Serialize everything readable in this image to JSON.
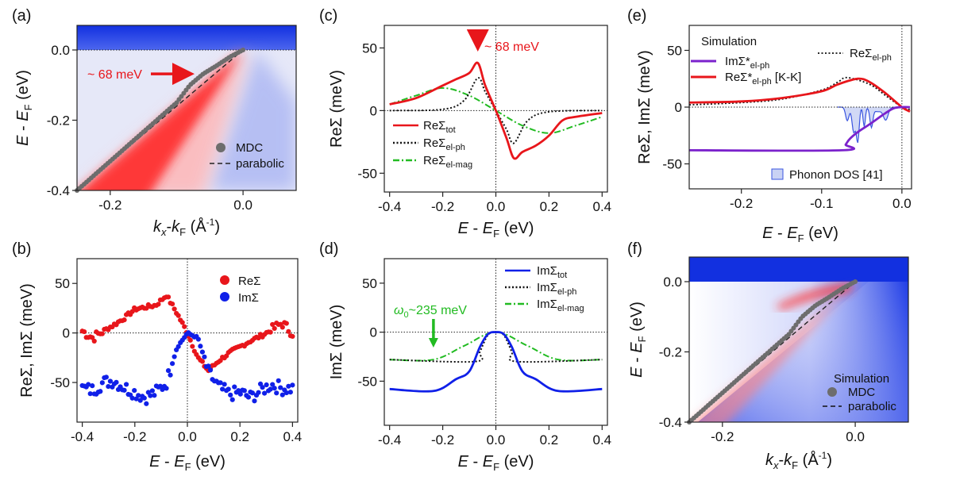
{
  "chart_data": [
    {
      "id": "a",
      "panel_label": "(a)",
      "type": "heatmap",
      "xlabel": "kx-kF (Å-1)",
      "ylabel": "E - EF (eV)",
      "xlim": [
        -0.25,
        0.08
      ],
      "ylim": [
        -0.4,
        0.07
      ],
      "xticks": [
        "-0.2",
        "0.0"
      ],
      "yticks": [
        "0.0",
        "-0.2",
        "-0.4"
      ],
      "annotation": "~ 68 meV",
      "annotation_energy": -0.068,
      "legend": [
        "MDC",
        "parabolic"
      ],
      "mdc": {
        "x": [
          -0.25,
          -0.22,
          -0.19,
          -0.16,
          -0.13,
          -0.1,
          -0.08,
          -0.06,
          -0.04,
          -0.02,
          0.0
        ],
        "y": [
          -0.4,
          -0.35,
          -0.3,
          -0.25,
          -0.2,
          -0.15,
          -0.1,
          -0.068,
          -0.045,
          -0.02,
          0.0
        ]
      },
      "parabolic": {
        "x": [
          -0.25,
          0.0
        ],
        "y": [
          -0.4,
          0.0
        ]
      }
    },
    {
      "id": "b",
      "panel_label": "(b)",
      "type": "scatter",
      "xlabel": "E - EF (eV)",
      "ylabel": "ReΣ, ImΣ (meV)",
      "xlim": [
        -0.42,
        0.42
      ],
      "ylim": [
        -90,
        75
      ],
      "xticks": [
        "-0.4",
        "-0.2",
        "0.0",
        "0.2",
        "0.4"
      ],
      "yticks": [
        "50",
        "0",
        "-50"
      ],
      "series": [
        {
          "name": "ReΣ",
          "color": "#e8161b",
          "x": [
            -0.4,
            -0.36,
            -0.32,
            -0.28,
            -0.24,
            -0.2,
            -0.16,
            -0.12,
            -0.08,
            -0.04,
            0.0,
            0.04,
            0.08,
            0.12,
            0.16,
            0.2,
            0.24,
            0.28,
            0.32,
            0.36,
            0.4
          ],
          "y": [
            2,
            -5,
            2,
            8,
            15,
            24,
            26,
            28,
            38,
            20,
            0,
            -25,
            -38,
            -28,
            -20,
            -14,
            -8,
            -3,
            3,
            10,
            0
          ]
        },
        {
          "name": "ImΣ",
          "color": "#1020e8",
          "x": [
            -0.4,
            -0.36,
            -0.32,
            -0.28,
            -0.24,
            -0.2,
            -0.16,
            -0.12,
            -0.08,
            -0.04,
            0.0,
            0.04,
            0.08,
            0.12,
            0.16,
            0.2,
            0.24,
            0.28,
            0.32,
            0.36,
            0.4
          ],
          "y": [
            -56,
            -58,
            -50,
            -48,
            -55,
            -60,
            -65,
            -60,
            -50,
            -15,
            0,
            -5,
            -40,
            -55,
            -62,
            -60,
            -65,
            -58,
            -52,
            -56,
            -56
          ]
        }
      ]
    },
    {
      "id": "c",
      "panel_label": "(c)",
      "type": "line",
      "xlabel": "E - EF (eV)",
      "ylabel": "ReΣ (meV)",
      "xlim": [
        -0.42,
        0.42
      ],
      "ylim": [
        -65,
        68
      ],
      "xticks": [
        "-0.4",
        "-0.2",
        "0.0",
        "0.2",
        "0.4"
      ],
      "yticks": [
        "50",
        "0",
        "-50"
      ],
      "annotation": "~ 68 meV",
      "series": [
        {
          "name": "ReΣtot",
          "label_main": "ReΣ",
          "label_sub": "tot",
          "color": "#e8161b",
          "style": "solid",
          "x": [
            -0.4,
            -0.3,
            -0.2,
            -0.15,
            -0.1,
            -0.068,
            -0.04,
            0.0,
            0.04,
            0.068,
            0.1,
            0.15,
            0.2,
            0.25,
            0.3,
            0.4
          ],
          "y": [
            5,
            10,
            20,
            25,
            30,
            38,
            20,
            0,
            -22,
            -38,
            -33,
            -28,
            -20,
            -8,
            -5,
            -2
          ]
        },
        {
          "name": "ReΣel-ph",
          "label_main": "ReΣ",
          "label_sub": "el-ph",
          "color": "#111111",
          "style": "dotted",
          "x": [
            -0.4,
            -0.2,
            -0.12,
            -0.068,
            -0.04,
            0.0,
            0.04,
            0.068,
            0.12,
            0.2,
            0.4
          ],
          "y": [
            0,
            1,
            8,
            26,
            15,
            0,
            -15,
            -26,
            -8,
            -1,
            0
          ]
        },
        {
          "name": "ReΣel-mag",
          "label_main": "ReΣ",
          "label_sub": "el-mag",
          "color": "#22bb22",
          "style": "dashdot",
          "x": [
            -0.4,
            -0.3,
            -0.2,
            -0.1,
            0.0,
            0.1,
            0.2,
            0.3,
            0.4
          ],
          "y": [
            5,
            12,
            18,
            12,
            0,
            -12,
            -18,
            -12,
            -5
          ]
        }
      ]
    },
    {
      "id": "d",
      "panel_label": "(d)",
      "type": "line",
      "xlabel": "E - EF (eV)",
      "ylabel": "ImΣ (meV)",
      "xlim": [
        -0.42,
        0.42
      ],
      "ylim": [
        -95,
        75
      ],
      "xticks": [
        "-0.4",
        "-0.2",
        "0.0",
        "0.2",
        "0.4"
      ],
      "yticks": [
        "50",
        "0",
        "-50"
      ],
      "annotation": "ω0~235 meV",
      "annotation_energy": -0.235,
      "series": [
        {
          "name": "ImΣtot",
          "label_main": "ImΣ",
          "label_sub": "tot",
          "color": "#1020e8",
          "style": "solid",
          "x": [
            -0.4,
            -0.235,
            -0.15,
            -0.1,
            -0.06,
            -0.03,
            0.0,
            0.03,
            0.06,
            0.1,
            0.15,
            0.235,
            0.4
          ],
          "y": [
            -58,
            -60,
            -48,
            -40,
            -15,
            -2,
            0,
            -2,
            -15,
            -40,
            -48,
            -60,
            -58
          ]
        },
        {
          "name": "ImΣel-ph",
          "label_main": "ImΣ",
          "label_sub": "el-ph",
          "color": "#111111",
          "style": "dotted",
          "x": [
            -0.4,
            -0.08,
            -0.06,
            -0.03,
            0.0,
            0.03,
            0.06,
            0.08,
            0.4
          ],
          "y": [
            -28,
            -30,
            -20,
            -3,
            0,
            -3,
            -20,
            -30,
            -28
          ]
        },
        {
          "name": "ImΣel-mag",
          "label_main": "ImΣ",
          "label_sub": "el-mag",
          "color": "#22bb22",
          "style": "dashdot",
          "x": [
            -0.4,
            -0.235,
            -0.12,
            0.0,
            0.12,
            0.235,
            0.4
          ],
          "y": [
            -28,
            -28,
            -14,
            0,
            -14,
            -28,
            -28
          ]
        }
      ]
    },
    {
      "id": "e",
      "panel_label": "(e)",
      "type": "line",
      "xlabel": "E - EF (eV)",
      "ylabel": "ReΣ, ImΣ (meV)",
      "xlim": [
        -0.265,
        0.012
      ],
      "ylim": [
        -72,
        72
      ],
      "xticks": [
        "-0.2",
        "-0.1",
        "0.0"
      ],
      "yticks": [
        "50",
        "0",
        "-50"
      ],
      "legend_title": "Simulation",
      "phonon_dos_label": "Phonon DOS [41]",
      "series": [
        {
          "name": "ImΣ*el-ph",
          "label_main": "ImΣ*",
          "label_sub": "el-ph",
          "color": "#7b22cc",
          "style": "solid",
          "x": [
            -0.265,
            -0.075,
            -0.07,
            -0.065,
            -0.055,
            -0.04,
            -0.02,
            -0.01,
            0.0,
            0.01
          ],
          "y": [
            -38,
            -38,
            -33,
            -28,
            -22,
            -15,
            -5,
            -1,
            0,
            0
          ]
        },
        {
          "name": "ReΣ*el-ph [K-K]",
          "label_main": "ReΣ*",
          "label_sub": "el-ph",
          "label_tail": " [K-K]",
          "color": "#e8161b",
          "style": "solid",
          "x": [
            -0.265,
            -0.2,
            -0.15,
            -0.1,
            -0.08,
            -0.055,
            -0.04,
            -0.02,
            0.0,
            0.01
          ],
          "y": [
            4,
            5,
            8,
            14,
            20,
            25,
            22,
            12,
            0,
            -4
          ]
        },
        {
          "name": "ReΣel-ph",
          "label_main": "ReΣ",
          "label_sub": "el-ph",
          "color": "#111111",
          "style": "dotted",
          "x": [
            -0.265,
            -0.2,
            -0.15,
            -0.1,
            -0.08,
            -0.068,
            -0.04,
            -0.02,
            0.0,
            0.01
          ],
          "y": [
            2,
            4,
            7,
            15,
            22,
            26,
            20,
            10,
            0,
            -2
          ]
        }
      ]
    },
    {
      "id": "f",
      "panel_label": "(f)",
      "type": "heatmap",
      "xlabel": "kx-kF (Å-1)",
      "ylabel": "E - EF (eV)",
      "xlim": [
        -0.25,
        0.08
      ],
      "ylim": [
        -0.4,
        0.07
      ],
      "xticks": [
        "-0.2",
        "0.0"
      ],
      "yticks": [
        "0.0",
        "-0.2",
        "-0.4"
      ],
      "legend_title": "Simulation",
      "legend": [
        "MDC",
        "parabolic"
      ],
      "mdc": {
        "x": [
          -0.25,
          -0.22,
          -0.19,
          -0.16,
          -0.13,
          -0.1,
          -0.08,
          -0.06,
          -0.04,
          -0.02,
          0.0
        ],
        "y": [
          -0.4,
          -0.35,
          -0.3,
          -0.25,
          -0.2,
          -0.15,
          -0.1,
          -0.068,
          -0.045,
          -0.02,
          0.0
        ]
      },
      "parabolic": {
        "x": [
          -0.25,
          0.0
        ],
        "y": [
          -0.4,
          0.0
        ]
      }
    }
  ]
}
